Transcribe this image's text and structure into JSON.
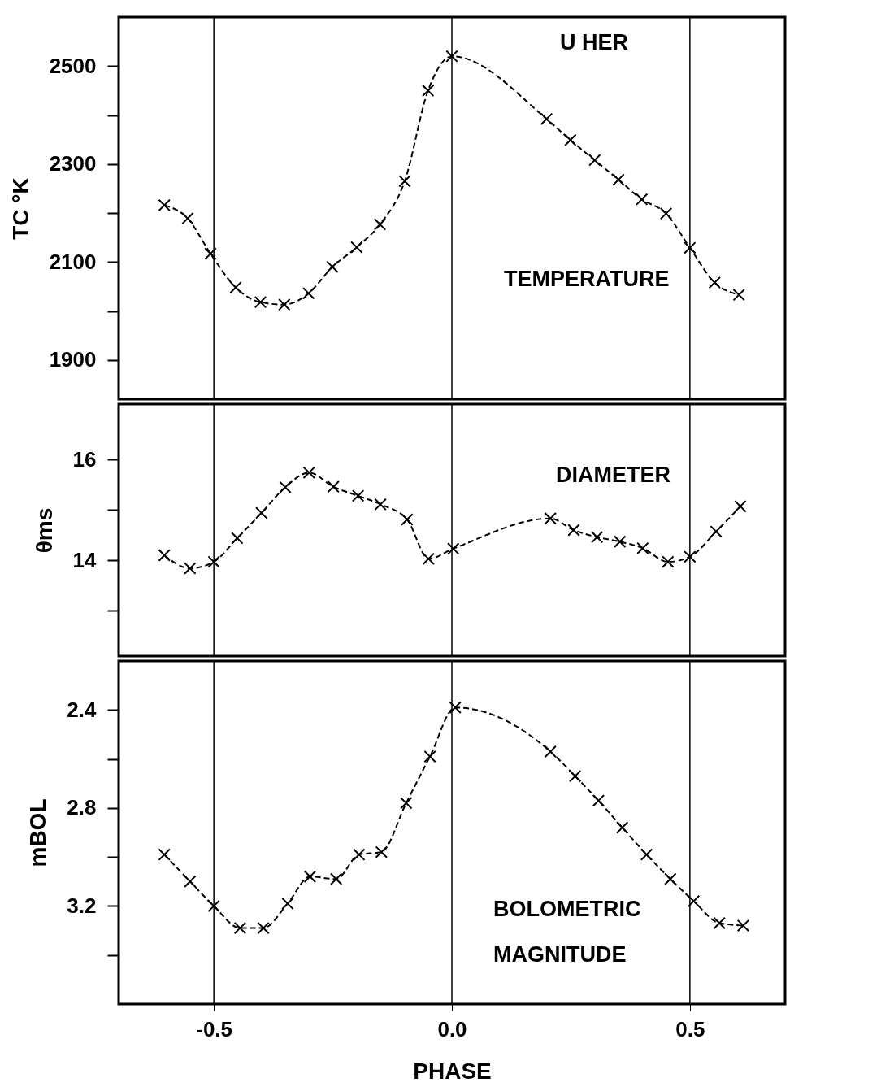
{
  "chart_data": [
    {
      "type": "line",
      "ylabel": "TC °K",
      "xlim": [
        -0.7,
        0.7
      ],
      "tick_labels": "y",
      "ylim": [
        1820,
        2600
      ],
      "yticks": [
        1900,
        {
          "value": 2000,
          "label": null
        },
        2100,
        {
          "value": 2200,
          "label": null
        },
        2300,
        {
          "value": 2400,
          "label": null
        },
        2500
      ],
      "marker": "cross",
      "line_style": "dashed",
      "x": [
        -0.604,
        -0.555,
        -0.507,
        -0.454,
        -0.402,
        -0.352,
        -0.301,
        -0.251,
        -0.2,
        -0.151,
        -0.099,
        -0.05,
        0.0,
        0.199,
        0.249,
        0.3,
        0.35,
        0.399,
        0.45,
        0.5,
        0.552,
        0.603
      ],
      "series": [
        {
          "color": "#000000",
          "values": [
            2216,
            2189,
            2117,
            2048,
            2018,
            2013,
            2036,
            2090,
            2130,
            2177,
            2265,
            2450,
            2520,
            2392,
            2349,
            2308,
            2268,
            2228,
            2199,
            2129,
            2058,
            2033
          ]
        }
      ],
      "ref_lines": [
        {
          "axis": "x",
          "value": -0.5
        },
        {
          "axis": "x",
          "value": 0
        },
        {
          "axis": "x",
          "value": 0.5
        }
      ],
      "annotations": [
        "U HER",
        "TEMPERATURE"
      ]
    },
    {
      "type": "line",
      "ylabel": "θms",
      "xlim": [
        -0.7,
        0.7
      ],
      "tick_labels": "y",
      "ylim": [
        12.1,
        17.1
      ],
      "yticks": [
        {
          "value": 13,
          "label": null
        },
        14,
        {
          "value": 15,
          "label": null
        },
        16
      ],
      "marker": "cross",
      "line_style": "dashed",
      "x": [
        -0.604,
        -0.55,
        -0.5,
        -0.451,
        -0.4,
        -0.35,
        -0.3,
        -0.249,
        -0.197,
        -0.15,
        -0.094,
        -0.049,
        0.003,
        0.207,
        0.256,
        0.305,
        0.353,
        0.401,
        0.454,
        0.5,
        0.555,
        0.606
      ],
      "series": [
        {
          "color": "#000000",
          "values": [
            14.1,
            13.84,
            13.97,
            14.44,
            14.94,
            15.45,
            15.74,
            15.46,
            15.28,
            15.11,
            14.81,
            14.03,
            14.23,
            14.83,
            14.6,
            14.46,
            14.37,
            14.24,
            13.97,
            14.07,
            14.57,
            15.07
          ]
        }
      ],
      "ref_lines": [
        {
          "axis": "x",
          "value": -0.5
        },
        {
          "axis": "x",
          "value": 0
        },
        {
          "axis": "x",
          "value": 0.5
        }
      ],
      "annotations": [
        "DIAMETER"
      ]
    },
    {
      "type": "line",
      "ylabel": "mBOL",
      "xlabel": "PHASE",
      "xlim": [
        -0.7,
        0.7
      ],
      "xticks": [
        -0.5,
        {
          "value": 0,
          "label": "0.0"
        },
        0.5
      ],
      "ylim": [
        3.6,
        2.2
      ],
      "yticks": [
        2.4,
        {
          "value": 2.6,
          "label": null
        },
        2.8,
        {
          "value": 3.0,
          "label": null
        },
        3.2,
        {
          "value": 3.4,
          "label": null
        }
      ],
      "marker": "cross",
      "line_style": "dashed",
      "x": [
        -0.604,
        -0.55,
        -0.5,
        -0.445,
        -0.396,
        -0.345,
        -0.298,
        -0.243,
        -0.195,
        -0.148,
        -0.096,
        -0.046,
        0.007,
        0.207,
        0.259,
        0.308,
        0.358,
        0.409,
        0.459,
        0.508,
        0.562,
        0.612
      ],
      "series": [
        {
          "color": "#000000",
          "values": [
            2.99,
            3.1,
            3.2,
            3.29,
            3.29,
            3.19,
            3.08,
            3.09,
            2.99,
            2.98,
            2.78,
            2.59,
            2.39,
            2.57,
            2.67,
            2.77,
            2.88,
            2.99,
            3.09,
            3.18,
            3.27,
            3.28
          ]
        }
      ],
      "ref_lines": [
        {
          "axis": "x",
          "value": -0.5
        },
        {
          "axis": "x",
          "value": 0
        },
        {
          "axis": "x",
          "value": 0.5
        }
      ],
      "annotations": [
        "BOLOMETRIC\nMAGNITUDE"
      ]
    }
  ]
}
